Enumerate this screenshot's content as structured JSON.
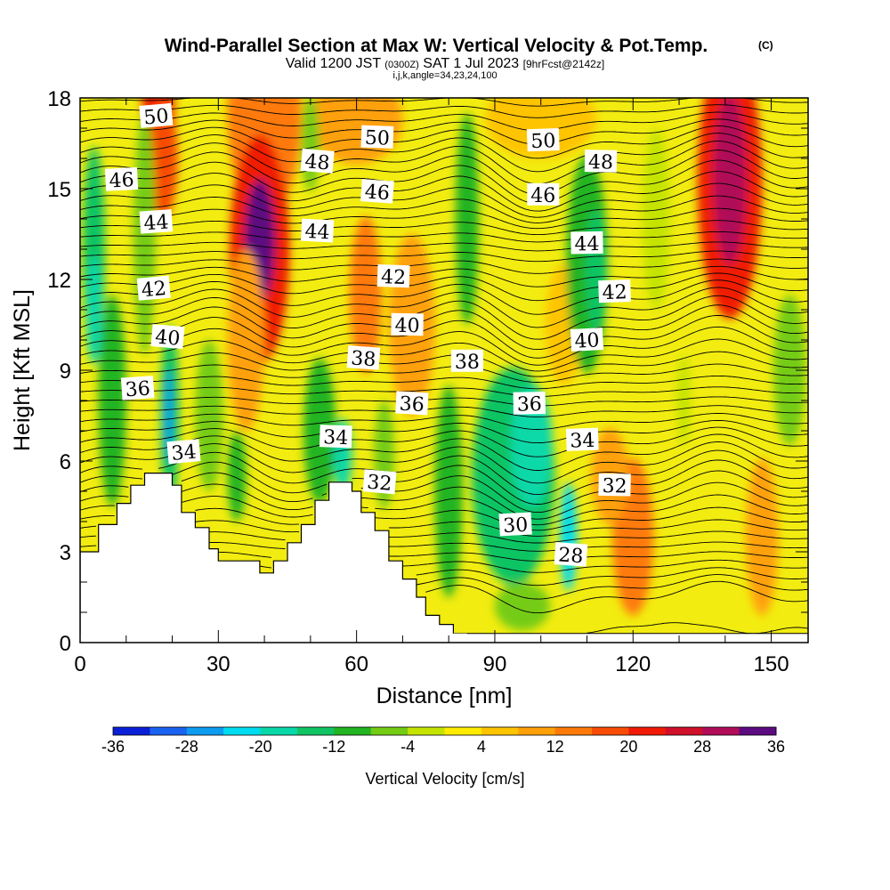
{
  "chart_data": {
    "type": "heatmap",
    "title": "Wind-Parallel Section at Max W: Vertical Velocity & Pot.Temp.",
    "title_mark": "(C)",
    "subtitle_prefix": "Valid 1200 JST",
    "subtitle_utc": "(0300Z)",
    "subtitle_date": "SAT 1 Jul 2023",
    "subtitle_fcst": "[9hrFcst@2142z]",
    "subtitle_indices": "i,j,k,angle=34,23,24,100",
    "xlabel": "Distance [nm]",
    "ylabel": "Height [Kft MSL]",
    "xlim": [
      0,
      158
    ],
    "ylim": [
      0,
      18
    ],
    "x_ticks": [
      "0",
      "30",
      "60",
      "90",
      "120",
      "150"
    ],
    "y_ticks": [
      "0",
      "3",
      "6",
      "9",
      "12",
      "15",
      "18"
    ],
    "colorbar": {
      "label": "Vertical Velocity [cm/s]",
      "tick_labels": [
        "-36",
        "-28",
        "-20",
        "-12",
        "-4",
        "4",
        "12",
        "20",
        "28",
        "36"
      ],
      "levels": [
        -36,
        -32,
        -28,
        -24,
        -20,
        -16,
        -12,
        -8,
        -4,
        0,
        4,
        8,
        12,
        16,
        20,
        24,
        28,
        32,
        36
      ],
      "colors": [
        "#0a1fd8",
        "#1a62f0",
        "#0d9cf0",
        "#00dcf0",
        "#08d8a8",
        "#10c464",
        "#22b422",
        "#74cc14",
        "#c4e400",
        "#ffec00",
        "#ffc400",
        "#ffa008",
        "#fe7a08",
        "#f84c06",
        "#f01a06",
        "#d0102a",
        "#b00c58",
        "#5c0a80"
      ]
    },
    "terrain_kft": [
      [
        0,
        3.0
      ],
      [
        4,
        3.0
      ],
      [
        4,
        3.9
      ],
      [
        8,
        3.9
      ],
      [
        8,
        4.6
      ],
      [
        11,
        4.6
      ],
      [
        11,
        5.2
      ],
      [
        14,
        5.2
      ],
      [
        14,
        5.6
      ],
      [
        20,
        5.6
      ],
      [
        20,
        5.2
      ],
      [
        22,
        5.2
      ],
      [
        22,
        4.3
      ],
      [
        25,
        4.3
      ],
      [
        25,
        3.8
      ],
      [
        28,
        3.8
      ],
      [
        28,
        3.1
      ],
      [
        30,
        3.1
      ],
      [
        30,
        2.7
      ],
      [
        39,
        2.7
      ],
      [
        39,
        2.3
      ],
      [
        42,
        2.3
      ],
      [
        42,
        2.7
      ],
      [
        45,
        2.7
      ],
      [
        45,
        3.3
      ],
      [
        48,
        3.3
      ],
      [
        48,
        3.9
      ],
      [
        51,
        3.9
      ],
      [
        51,
        4.7
      ],
      [
        54,
        4.7
      ],
      [
        54,
        5.3
      ],
      [
        59,
        5.3
      ],
      [
        59,
        5.0
      ],
      [
        61,
        5.0
      ],
      [
        61,
        4.3
      ],
      [
        64,
        4.3
      ],
      [
        64,
        3.7
      ],
      [
        67,
        3.7
      ],
      [
        67,
        2.7
      ],
      [
        70,
        2.7
      ],
      [
        70,
        2.1
      ],
      [
        73,
        2.1
      ],
      [
        73,
        1.5
      ],
      [
        75,
        1.5
      ],
      [
        75,
        0.9
      ],
      [
        78,
        0.9
      ],
      [
        78,
        0.6
      ],
      [
        81,
        0.6
      ],
      [
        81,
        0.3
      ],
      [
        84,
        0.3
      ],
      [
        84,
        0.0
      ]
    ],
    "theta_label_celsius": [
      {
        "x": 16.5,
        "y": 17.4,
        "v": "50"
      },
      {
        "x": 64.5,
        "y": 16.7,
        "v": "50"
      },
      {
        "x": 100.5,
        "y": 16.6,
        "v": "50"
      },
      {
        "x": 51.5,
        "y": 15.9,
        "v": "48"
      },
      {
        "x": 113,
        "y": 15.9,
        "v": "48"
      },
      {
        "x": 9,
        "y": 15.3,
        "v": "46"
      },
      {
        "x": 64.5,
        "y": 14.9,
        "v": "46"
      },
      {
        "x": 100.5,
        "y": 14.8,
        "v": "46"
      },
      {
        "x": 16.5,
        "y": 13.9,
        "v": "44"
      },
      {
        "x": 51.5,
        "y": 13.6,
        "v": "44"
      },
      {
        "x": 110,
        "y": 13.2,
        "v": "44"
      },
      {
        "x": 16,
        "y": 11.7,
        "v": "42"
      },
      {
        "x": 68,
        "y": 12.1,
        "v": "42"
      },
      {
        "x": 116,
        "y": 11.6,
        "v": "42"
      },
      {
        "x": 19,
        "y": 10.1,
        "v": "40"
      },
      {
        "x": 71,
        "y": 10.5,
        "v": "40"
      },
      {
        "x": 110,
        "y": 10.0,
        "v": "40"
      },
      {
        "x": 61.5,
        "y": 9.4,
        "v": "38"
      },
      {
        "x": 84,
        "y": 9.3,
        "v": "38"
      },
      {
        "x": 12.5,
        "y": 8.4,
        "v": "36"
      },
      {
        "x": 72,
        "y": 7.9,
        "v": "36"
      },
      {
        "x": 97.5,
        "y": 7.9,
        "v": "36"
      },
      {
        "x": 22.5,
        "y": 6.3,
        "v": "34"
      },
      {
        "x": 55.5,
        "y": 6.8,
        "v": "34"
      },
      {
        "x": 109,
        "y": 6.7,
        "v": "34"
      },
      {
        "x": 65,
        "y": 5.3,
        "v": "32"
      },
      {
        "x": 116,
        "y": 5.2,
        "v": "32"
      },
      {
        "x": 94.5,
        "y": 3.9,
        "v": "30"
      },
      {
        "x": 106.5,
        "y": 2.9,
        "v": "28"
      }
    ],
    "vertical_velocity_cells": [
      {
        "x": 17,
        "y": 17.5,
        "rx": 3.5,
        "ry": 2.6,
        "v": 22
      },
      {
        "x": 18,
        "y": 16.0,
        "rx": 3.2,
        "ry": 2.0,
        "v": 16
      },
      {
        "x": 40,
        "y": 17.5,
        "rx": 8,
        "ry": 3.5,
        "v": 12
      },
      {
        "x": 39,
        "y": 13.0,
        "rx": 6.5,
        "ry": 3.8,
        "v": 20
      },
      {
        "x": 39,
        "y": 13.3,
        "rx": 3.2,
        "ry": 2.0,
        "v": 32
      },
      {
        "x": 36,
        "y": 10.0,
        "rx": 4,
        "ry": 3.0,
        "v": 10
      },
      {
        "x": 62,
        "y": 11.5,
        "rx": 3.5,
        "ry": 2.6,
        "v": 14
      },
      {
        "x": 72,
        "y": 10.5,
        "rx": 5,
        "ry": 3.0,
        "v": 11
      },
      {
        "x": 141,
        "y": 15.2,
        "rx": 7,
        "ry": 4.5,
        "v": 20
      },
      {
        "x": 141,
        "y": 15.3,
        "rx": 3.6,
        "ry": 2.8,
        "v": 30
      },
      {
        "x": 60,
        "y": 17.3,
        "rx": 10,
        "ry": 1.5,
        "v": 8
      },
      {
        "x": 100,
        "y": 17.3,
        "rx": 12,
        "ry": 1.3,
        "v": 7
      },
      {
        "x": 120,
        "y": 3.5,
        "rx": 4.5,
        "ry": 2.6,
        "v": 12
      },
      {
        "x": 115,
        "y": 5.5,
        "rx": 4,
        "ry": 1.6,
        "v": 9
      },
      {
        "x": 148,
        "y": 3.5,
        "rx": 3.5,
        "ry": 2.6,
        "v": 9
      },
      {
        "x": 105,
        "y": 10.5,
        "rx": 4,
        "ry": 2.0,
        "v": 6
      },
      {
        "x": 3,
        "y": 13.0,
        "rx": 2.4,
        "ry": 3.4,
        "v": -15
      },
      {
        "x": 3,
        "y": 11.0,
        "rx": 1.8,
        "ry": 1.8,
        "v": -20
      },
      {
        "x": 7,
        "y": 8.0,
        "rx": 3,
        "ry": 3.5,
        "v": -10
      },
      {
        "x": 19.5,
        "y": 7.5,
        "rx": 2,
        "ry": 3.0,
        "v": -15
      },
      {
        "x": 19.2,
        "y": 7.5,
        "rx": 0.9,
        "ry": 1.6,
        "v": -26
      },
      {
        "x": 14,
        "y": 13.5,
        "rx": 2.4,
        "ry": 4.0,
        "v": -8
      },
      {
        "x": 28,
        "y": 7.5,
        "rx": 3,
        "ry": 2.5,
        "v": -6
      },
      {
        "x": 34,
        "y": 5.5,
        "rx": 2,
        "ry": 1.5,
        "v": -10
      },
      {
        "x": 52,
        "y": 7.0,
        "rx": 3.5,
        "ry": 2.4,
        "v": -12
      },
      {
        "x": 57,
        "y": 6.2,
        "rx": 2,
        "ry": 1.2,
        "v": -20
      },
      {
        "x": 50,
        "y": 16.5,
        "rx": 2,
        "ry": 1.6,
        "v": -6
      },
      {
        "x": 66,
        "y": 6.2,
        "rx": 2.2,
        "ry": 1.8,
        "v": -8
      },
      {
        "x": 80,
        "y": 5.0,
        "rx": 3,
        "ry": 3.5,
        "v": -10
      },
      {
        "x": 94,
        "y": 5.5,
        "rx": 9,
        "ry": 3.6,
        "v": -13
      },
      {
        "x": 98,
        "y": 6.5,
        "rx": 4.5,
        "ry": 2.0,
        "v": -20
      },
      {
        "x": 106,
        "y": 3.5,
        "rx": 1.8,
        "ry": 1.8,
        "v": -22
      },
      {
        "x": 96,
        "y": 1.2,
        "rx": 6,
        "ry": 0.8,
        "v": -8
      },
      {
        "x": 84,
        "y": 14.0,
        "rx": 2.5,
        "ry": 3.5,
        "v": -12
      },
      {
        "x": 110,
        "y": 12.5,
        "rx": 4.5,
        "ry": 3.6,
        "v": -10
      },
      {
        "x": 112,
        "y": 12.3,
        "rx": 2.3,
        "ry": 2.0,
        "v": -14
      },
      {
        "x": 154,
        "y": 9.0,
        "rx": 3.5,
        "ry": 2.5,
        "v": -6
      },
      {
        "x": 131,
        "y": 8.0,
        "rx": 1.5,
        "ry": 1.5,
        "v": -4
      },
      {
        "x": 125,
        "y": 14.0,
        "rx": 3,
        "ry": 3.0,
        "v": -2
      }
    ]
  }
}
